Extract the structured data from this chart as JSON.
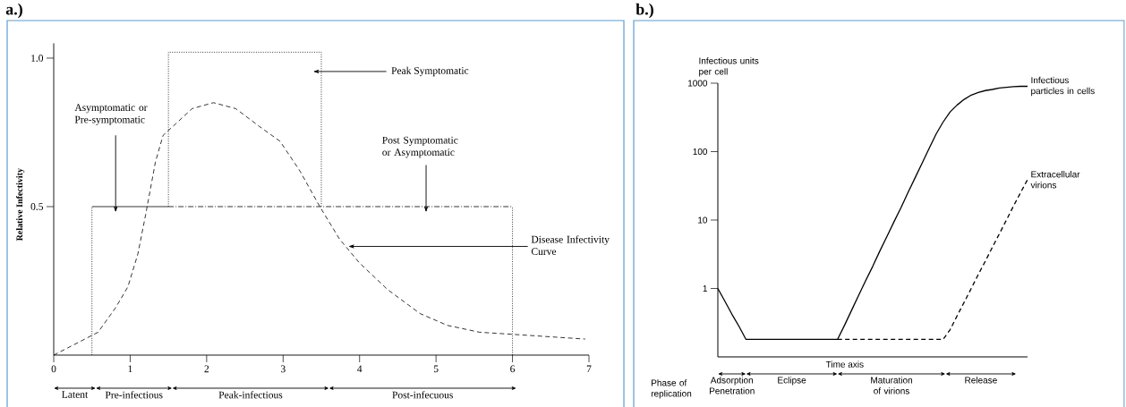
{
  "chart_data": [
    {
      "type": "line",
      "title": "a.)",
      "ylabel": "Relative Infectivity",
      "xlim": [
        0,
        7
      ],
      "xticks": [
        0,
        1,
        2,
        3,
        4,
        5,
        6,
        7
      ],
      "ylim": [
        0,
        1.05
      ],
      "yticks": [
        {
          "value": 0.5,
          "label": "0.5"
        },
        {
          "value": 1,
          "label": "1.0"
        }
      ],
      "series": [
        {
          "color": "#000000",
          "line_style": "dashed",
          "x": [
            0,
            0.58,
            0.81,
            0.97,
            1.1,
            1.2,
            1.33,
            1.43,
            1.6,
            1.81,
            2.09,
            2.38,
            2.69,
            2.96,
            3.22,
            3.48,
            3.74,
            4.0,
            4.37,
            4.79,
            5.15,
            5.57,
            6.0,
            6.95
          ],
          "values": [
            0,
            0.077,
            0.16,
            0.23,
            0.34,
            0.47,
            0.65,
            0.74,
            0.78,
            0.83,
            0.85,
            0.83,
            0.77,
            0.72,
            0.62,
            0.5,
            0.39,
            0.31,
            0.22,
            0.14,
            0.1,
            0.077,
            0.07,
            0.054
          ]
        },
        {
          "color": "#000000",
          "line_style": "dotted",
          "x": [
            0.5,
            0.5
          ],
          "values": [
            0,
            0.5
          ]
        },
        {
          "color": "#000000",
          "line_style": "solid",
          "x": [
            0.5,
            1.5
          ],
          "values": [
            0.5,
            0.5
          ]
        },
        {
          "color": "#000000",
          "line_style": "dotted",
          "x": [
            1.5,
            1.5,
            3.5,
            3.5
          ],
          "values": [
            0.5,
            1.02,
            1.02,
            0.5
          ]
        },
        {
          "color": "#000000",
          "line_style": "dashdot",
          "x": [
            1.5,
            6
          ],
          "values": [
            0.5,
            0.5
          ]
        },
        {
          "color": "#000000",
          "line_style": "dotted",
          "x": [
            6,
            6
          ],
          "values": [
            0,
            0.5
          ]
        }
      ],
      "annotations": [
        "Peak Symptomatic",
        "Asymptomatic or Pre-symptomatic",
        "Post Symptomatic or Asymptomatic",
        {
          "text": "Disease Infectivity Curve",
          "x": 3.85,
          "y": 0.366
        },
        "Latent",
        "Pre-infectious",
        "Peak-infectious",
        "Post-infecuous"
      ]
    },
    {
      "type": "line",
      "title": "b.)",
      "xlabel": "Time axis",
      "ylabel": "Infectious units per cell",
      "log": "y",
      "ylim": [
        0.1,
        1000
      ],
      "yticks": [
        1,
        10,
        100,
        1000
      ],
      "categories": [
        null,
        null,
        null,
        null,
        null,
        null,
        null,
        null,
        null,
        null,
        null,
        null,
        null,
        null,
        null,
        null,
        null,
        null,
        null,
        null,
        null,
        null,
        null,
        null,
        null,
        null,
        null,
        null,
        null,
        null,
        null,
        null,
        null,
        null,
        null,
        null,
        null,
        null,
        null,
        null,
        null,
        null,
        null,
        null,
        null
      ],
      "series": [
        {
          "name": "Infectious particles in cells",
          "color": "#000000",
          "line_style": "solid",
          "values": [
            1,
            0.65,
            0.42,
            0.28,
            0.18,
            0.18,
            0.18,
            0.18,
            0.18,
            0.18,
            0.18,
            0.18,
            0.18,
            0.18,
            0.18,
            0.18,
            0.18,
            0.18,
            0.29,
            0.48,
            0.79,
            1.3,
            2.1,
            3.5,
            5.7,
            9.3,
            15,
            25,
            41,
            67,
            110,
            180,
            270,
            380,
            480,
            580,
            670,
            730,
            780,
            810,
            850,
            870,
            890,
            900,
            900
          ]
        },
        {
          "name": "Extracellular virions",
          "color": "#000000",
          "line_style": "dashed",
          "values": [
            null,
            null,
            null,
            null,
            null,
            null,
            null,
            null,
            null,
            null,
            null,
            null,
            null,
            null,
            null,
            null,
            null,
            0.18,
            0.18,
            0.18,
            0.18,
            0.18,
            0.18,
            0.18,
            0.18,
            0.18,
            0.18,
            0.18,
            0.18,
            0.18,
            0.18,
            0.18,
            0.18,
            0.25,
            0.4,
            0.63,
            1.0,
            1.6,
            2.5,
            4.0,
            6.3,
            10,
            16,
            25,
            39
          ]
        }
      ],
      "annotations": [
        "Phase of replication",
        "Adsorption Penetration",
        "Eclipse",
        "Maturation of virions",
        "Release"
      ]
    }
  ]
}
